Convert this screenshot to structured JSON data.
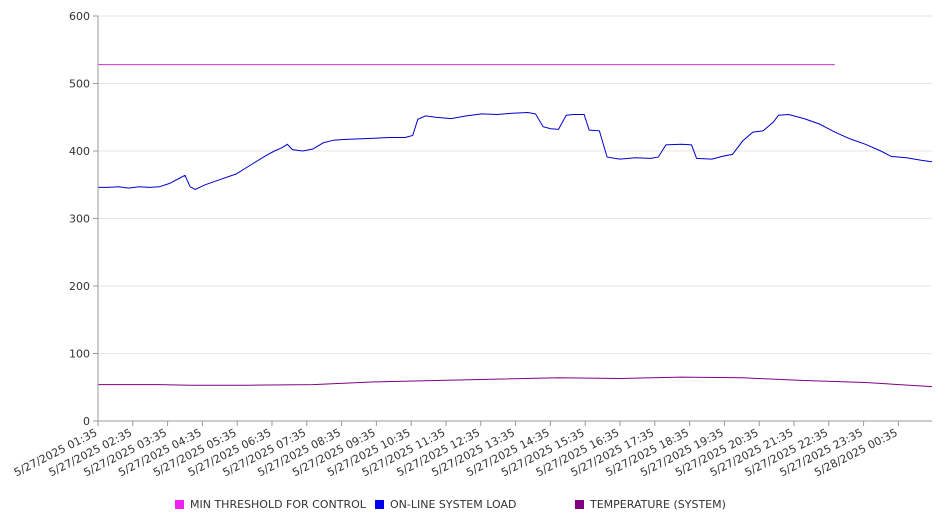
{
  "chart_data": {
    "type": "line",
    "title": "",
    "xlabel": "",
    "ylabel": "",
    "ylim": [
      0,
      600
    ],
    "yticks": [
      0,
      100,
      200,
      300,
      400,
      500,
      600
    ],
    "grid": true,
    "legend_position": "bottom",
    "x_tick_labels": [
      "5/27/2025 01:35",
      "5/27/2025 02:35",
      "5/27/2025 03:35",
      "5/27/2025 04:35",
      "5/27/2025 05:35",
      "5/27/2025 06:35",
      "5/27/2025 07:35",
      "5/27/2025 08:35",
      "5/27/2025 09:35",
      "5/27/2025 10:35",
      "5/27/2025 11:35",
      "5/27/2025 12:35",
      "5/27/2025 13:35",
      "5/27/2025 14:35",
      "5/27/2025 15:35",
      "5/27/2025 16:35",
      "5/27/2025 17:35",
      "5/27/2025 18:35",
      "5/27/2025 19:35",
      "5/27/2025 20:35",
      "5/27/2025 21:35",
      "5/27/2025 22:35",
      "5/27/2025 23:35",
      "5/28/2025 00:35"
    ],
    "x_range": [
      "5/27/2025 01:35",
      "5/28/2025 01:35"
    ],
    "series": [
      {
        "name": "MIN THRESHOLD FOR CONTROL",
        "color": "#cc33cc",
        "points": [
          [
            "5/27/2025 01:35",
            528
          ],
          [
            "5/28/2025 01:35",
            528
          ]
        ]
      },
      {
        "name": "ON-LINE SYSTEM LOAD",
        "color": "#0000cc",
        "points": [
          [
            "5/27/2025 01:35",
            346
          ],
          [
            "5/27/2025 01:55",
            346
          ],
          [
            "5/27/2025 02:15",
            347
          ],
          [
            "5/27/2025 02:35",
            345
          ],
          [
            "5/27/2025 02:55",
            347
          ],
          [
            "5/27/2025 03:15",
            346
          ],
          [
            "5/27/2025 03:35",
            347
          ],
          [
            "5/27/2025 03:55",
            352
          ],
          [
            "5/27/2025 04:15",
            360
          ],
          [
            "5/27/2025 04:25",
            364
          ],
          [
            "5/27/2025 04:35",
            347
          ],
          [
            "5/27/2025 04:45",
            343
          ],
          [
            "5/27/2025 05:05",
            350
          ],
          [
            "5/27/2025 05:35",
            358
          ],
          [
            "5/27/2025 06:05",
            366
          ],
          [
            "5/27/2025 06:35",
            380
          ],
          [
            "5/27/2025 07:05",
            394
          ],
          [
            "5/27/2025 07:20",
            400
          ],
          [
            "5/27/2025 07:35",
            405
          ],
          [
            "5/27/2025 07:45",
            410
          ],
          [
            "5/27/2025 07:55",
            402
          ],
          [
            "5/27/2025 08:15",
            400
          ],
          [
            "5/27/2025 08:35",
            403
          ],
          [
            "5/27/2025 08:55",
            412
          ],
          [
            "5/27/2025 09:15",
            416
          ],
          [
            "5/27/2025 09:35",
            417
          ],
          [
            "5/27/2025 10:05",
            418
          ],
          [
            "5/27/2025 10:35",
            419
          ],
          [
            "5/27/2025 11:05",
            420
          ],
          [
            "5/27/2025 11:35",
            420
          ],
          [
            "5/27/2025 11:50",
            423
          ],
          [
            "5/27/2025 12:00",
            447
          ],
          [
            "5/27/2025 12:15",
            452
          ],
          [
            "5/27/2025 12:35",
            450
          ],
          [
            "5/27/2025 13:05",
            448
          ],
          [
            "5/27/2025 13:35",
            452
          ],
          [
            "5/27/2025 14:05",
            455
          ],
          [
            "5/27/2025 14:35",
            454
          ],
          [
            "5/27/2025 15:05",
            456
          ],
          [
            "5/27/2025 15:35",
            457
          ],
          [
            "5/27/2025 15:50",
            455
          ],
          [
            "5/27/2025 16:05",
            436
          ],
          [
            "5/27/2025 16:20",
            433
          ],
          [
            "5/27/2025 16:35",
            432
          ],
          [
            "5/27/2025 16:50",
            453
          ],
          [
            "5/27/2025 17:05",
            454
          ],
          [
            "5/27/2025 17:25",
            454
          ],
          [
            "5/27/2025 17:35",
            431
          ],
          [
            "5/27/2025 17:55",
            430
          ],
          [
            "5/27/2025 18:10",
            391
          ],
          [
            "5/27/2025 18:35",
            388
          ],
          [
            "5/27/2025 19:05",
            390
          ],
          [
            "5/27/2025 19:35",
            389
          ],
          [
            "5/27/2025 19:50",
            391
          ],
          [
            "5/27/2025 20:05",
            409
          ],
          [
            "5/27/2025 20:35",
            410
          ],
          [
            "5/27/2025 20:55",
            409
          ],
          [
            "5/27/2025 21:05",
            389
          ],
          [
            "5/27/2025 21:35",
            388
          ],
          [
            "5/27/2025 21:55",
            392
          ],
          [
            "5/27/2025 22:15",
            395
          ],
          [
            "5/27/2025 22:35",
            415
          ],
          [
            "5/27/2025 22:55",
            428
          ],
          [
            "5/27/2025 23:15",
            430
          ],
          [
            "5/27/2025 23:35",
            443
          ],
          [
            "5/27/2025 23:45",
            453
          ],
          [
            "5/28/2025 00:05",
            454
          ],
          [
            "5/28/2025 00:35",
            448
          ],
          [
            "5/28/2025 01:05",
            440
          ],
          [
            "5/28/2025 01:35",
            428
          ],
          [
            "5/28/2025 02:05",
            418
          ],
          [
            "5/28/2025 02:35",
            410
          ],
          [
            "5/28/2025 03:05",
            400
          ],
          [
            "5/28/2025 03:25",
            392
          ],
          [
            "5/28/2025 03:55",
            390
          ],
          [
            "5/28/2025 04:25",
            386
          ],
          [
            "5/28/2025 04:45",
            384
          ]
        ]
      },
      {
        "name": "TEMPERATURE (SYSTEM)",
        "color": "#800080",
        "points": [
          [
            "5/27/2025 01:35",
            54
          ],
          [
            "5/27/2025 03:35",
            54
          ],
          [
            "5/27/2025 04:35",
            53
          ],
          [
            "5/27/2025 06:35",
            53
          ],
          [
            "5/27/2025 08:35",
            54
          ],
          [
            "5/27/2025 10:35",
            58
          ],
          [
            "5/27/2025 12:35",
            60
          ],
          [
            "5/27/2025 14:35",
            62
          ],
          [
            "5/27/2025 16:35",
            64
          ],
          [
            "5/27/2025 18:35",
            63
          ],
          [
            "5/27/2025 20:35",
            65
          ],
          [
            "5/27/2025 22:35",
            64
          ],
          [
            "5/28/2025 00:35",
            60
          ],
          [
            "5/28/2025 02:35",
            57
          ],
          [
            "5/28/2025 04:45",
            51
          ]
        ]
      }
    ]
  }
}
